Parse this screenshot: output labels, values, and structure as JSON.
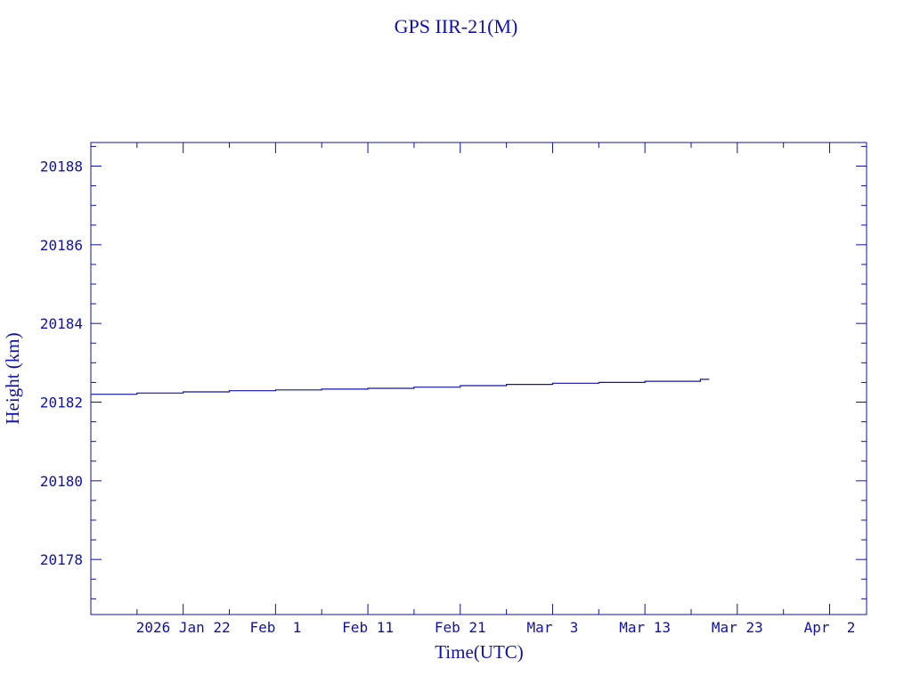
{
  "chart_data": {
    "type": "line",
    "title": "GPS IIR-21(M)",
    "xlabel": "Time(UTC)",
    "ylabel": "Height (km)",
    "xlim": [
      "2026-01-12",
      "2026-04-06"
    ],
    "ylim": [
      20176.6,
      20188.6
    ],
    "x_ticks": [
      {
        "date": "2026-01-22",
        "label": "2026 Jan 22"
      },
      {
        "date": "2026-02-01",
        "label": "Feb  1"
      },
      {
        "date": "2026-02-11",
        "label": "Feb 11"
      },
      {
        "date": "2026-02-21",
        "label": "Feb 21"
      },
      {
        "date": "2026-03-03",
        "label": "Mar  3"
      },
      {
        "date": "2026-03-13",
        "label": "Mar 13"
      },
      {
        "date": "2026-03-23",
        "label": "Mar 23"
      },
      {
        "date": "2026-04-02",
        "label": "Apr  2"
      }
    ],
    "y_ticks": [
      20178,
      20180,
      20182,
      20184,
      20186,
      20188
    ],
    "grid": false,
    "color": "#1010b0",
    "series": [
      {
        "x": [
          "2026-01-12",
          "2026-01-17",
          "2026-01-22",
          "2026-01-27",
          "2026-02-01",
          "2026-02-06",
          "2026-02-11",
          "2026-02-16",
          "2026-02-21",
          "2026-02-26",
          "2026-03-03",
          "2026-03-08",
          "2026-03-13",
          "2026-03-19"
        ],
        "y": [
          20182.2,
          20182.23,
          20182.26,
          20182.29,
          20182.31,
          20182.33,
          20182.35,
          20182.38,
          20182.42,
          20182.45,
          20182.48,
          20182.5,
          20182.53,
          20182.58
        ]
      }
    ]
  }
}
